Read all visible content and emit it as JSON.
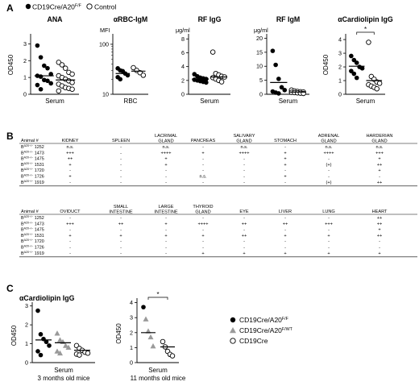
{
  "panel_a": {
    "label": "A",
    "legend": {
      "cre": "CD19Cre/A20",
      "cre_sup": "F/F",
      "control": "Control"
    },
    "charts": [
      {
        "title": "ANA",
        "ylabel": "OD450",
        "unit": "",
        "xlabel": "Serum",
        "yticks": [
          "0",
          "1",
          "2",
          "3"
        ],
        "ymax": 3.5,
        "scale": "linear"
      },
      {
        "title": "αRBC-IgM",
        "ylabel": "",
        "unit": "MFI",
        "xlabel": "RBC",
        "yticks": [
          "10",
          "100"
        ],
        "scale": "log",
        "logmin": 10,
        "logmax": 150
      },
      {
        "title": "RF IgG",
        "ylabel": "",
        "unit": "μg/ml",
        "xlabel": "Serum",
        "yticks": [
          "0",
          "2",
          "4",
          "6",
          "8"
        ],
        "ymax": 8.5,
        "scale": "linear"
      },
      {
        "title": "RF IgM",
        "ylabel": "",
        "unit": "μg/ml",
        "xlabel": "Serum",
        "yticks": [
          "0",
          "5",
          "10",
          "15",
          "20"
        ],
        "ymax": 21,
        "scale": "linear"
      },
      {
        "title": "αCardiolipin IgG",
        "ylabel": "OD450",
        "unit": "",
        "xlabel": "Serum",
        "yticks": [
          "0",
          "1",
          "2",
          "3",
          "4"
        ],
        "ymax": 4.3,
        "scale": "linear",
        "significance": "*"
      }
    ]
  },
  "panel_b": {
    "label": "B",
    "row_prefix": "B",
    "row_sup": "A20−/−",
    "animal_header": "Animal #",
    "animals": [
      "1252",
      "1473",
      "1475",
      "1531",
      "1720",
      "1726",
      "1919"
    ],
    "table1": {
      "columns": [
        [
          "KIDNEY"
        ],
        [
          "SPLEEN"
        ],
        [
          "LACRIMAL",
          "GLAND"
        ],
        [
          "PANCREAS"
        ],
        [
          "SALIVARY",
          "GLAND"
        ],
        [
          "STOMACH"
        ],
        [
          "ADRENAL",
          "GLAND"
        ],
        [
          "HARDERIAN",
          "GLAND"
        ]
      ],
      "rows": [
        [
          "n.s.",
          "-",
          "n.s.",
          "-",
          "n.s.",
          "-",
          "n.s.",
          "n.s."
        ],
        [
          "+++",
          "-",
          "++++",
          "+",
          "++++",
          "+",
          "++++",
          "+++"
        ],
        [
          "++",
          "-",
          "+",
          "-",
          "-",
          "+",
          "-",
          "+"
        ],
        [
          "+",
          "-",
          "+",
          "-",
          "-",
          "+",
          "(+)",
          "++"
        ],
        [
          "-",
          "-",
          "-",
          "-",
          "-",
          "-",
          "-",
          "+"
        ],
        [
          "+",
          "-",
          "-",
          "n.s.",
          "-",
          "+",
          "-",
          "-"
        ],
        [
          "-",
          "-",
          "-",
          "-",
          "-",
          "-",
          "(+)",
          "++"
        ]
      ]
    },
    "table2": {
      "columns": [
        [
          "OVIDUCT"
        ],
        [
          "SMALL",
          "INTESTINE"
        ],
        [
          "LARGE",
          "INTESTINE"
        ],
        [
          "THYROID",
          "GLAND"
        ],
        [
          "EYE"
        ],
        [
          "LIVER"
        ],
        [
          "LUNG"
        ],
        [
          "HEART"
        ]
      ],
      "rows": [
        [
          "-",
          "-",
          "-",
          "-",
          "-",
          "-",
          "-",
          "++"
        ],
        [
          "+++",
          "++",
          "+",
          "++++",
          "++",
          "++",
          "+++",
          "++"
        ],
        [
          "-",
          "-",
          "-",
          "-",
          "-",
          "-",
          "-",
          "+"
        ],
        [
          "+",
          "+",
          "+",
          "+",
          "++",
          "+",
          "+",
          "++"
        ],
        [
          "-",
          "-",
          "-",
          "-",
          "-",
          "-",
          "-",
          "-"
        ],
        [
          "-",
          "-",
          "-",
          "-",
          "-",
          "-",
          "-",
          "-"
        ],
        [
          "-",
          "-",
          "-",
          "+",
          "+",
          "+",
          "+",
          "+"
        ]
      ]
    }
  },
  "panel_c": {
    "label": "C",
    "chart1": {
      "title": "αCardiolipin IgG",
      "ylabel": "OD450",
      "xlabel": "Serum",
      "sublabel": "3 months old mice",
      "yticks": [
        "0",
        "1",
        "2",
        "3"
      ],
      "ymax": 3.2
    },
    "chart2": {
      "title": "",
      "ylabel": "OD450",
      "xlabel": "Serum",
      "sublabel": "11 months old mice",
      "yticks": [
        "0",
        "1",
        "2",
        "3",
        "4"
      ],
      "ymax": 4.3,
      "significance": "*"
    },
    "legend": [
      {
        "label": "CD19Cre/A20",
        "sup": "F/F",
        "marker": "filled-circle"
      },
      {
        "label": "CD19Cre/A20",
        "sup": "F/WT",
        "marker": "gray-triangle"
      },
      {
        "label": "CD19Cre",
        "sup": "",
        "marker": "open-circle"
      }
    ]
  },
  "chart_data": [
    {
      "type": "scatter",
      "panel": "A",
      "title": "ANA",
      "ylabel": "OD450",
      "xlabel": "Serum",
      "ylim": [
        0,
        3.5
      ],
      "series": [
        {
          "name": "CD19Cre/A20F/F",
          "values": [
            2.9,
            2.2,
            1.7,
            1.55,
            1.2,
            1.1,
            1.05,
            0.85,
            0.8,
            0.65,
            0.55,
            0.3
          ],
          "mean": 1.1
        },
        {
          "name": "Control",
          "values": [
            1.9,
            1.75,
            1.55,
            1.3,
            1.2,
            1.1,
            1.0,
            0.9,
            0.8,
            0.7,
            0.6,
            0.5,
            0.4,
            0.35,
            0.3,
            0.2
          ],
          "mean": 0.85
        }
      ]
    },
    {
      "type": "scatter",
      "panel": "A",
      "title": "αRBC-IgM",
      "ylabel": "MFI",
      "xlabel": "RBC",
      "ylim": [
        10,
        150
      ],
      "series": [
        {
          "name": "CD19Cre/A20F/F",
          "values": [
            33,
            30,
            29,
            26,
            24,
            22,
            20
          ],
          "mean": 26
        },
        {
          "name": "Control",
          "values": [
            34,
            30,
            27,
            24
          ],
          "mean": 29
        }
      ]
    },
    {
      "type": "scatter",
      "panel": "A",
      "title": "RF IgG",
      "ylabel": "μg/ml",
      "xlabel": "Serum",
      "ylim": [
        0,
        8.5
      ],
      "series": [
        {
          "name": "CD19Cre/A20F/F",
          "values": [
            2.9,
            2.6,
            2.4,
            2.3,
            2.2,
            2.1,
            2.0,
            1.9,
            1.8,
            1.7
          ],
          "mean": 2.2
        },
        {
          "name": "Control",
          "values": [
            6.1,
            3.0,
            2.8,
            2.6,
            2.5,
            2.4,
            2.2,
            2.0,
            1.8
          ],
          "mean": 2.5
        }
      ]
    },
    {
      "type": "scatter",
      "panel": "A",
      "title": "RF IgM",
      "ylabel": "μg/ml",
      "xlabel": "Serum",
      "ylim": [
        0,
        21
      ],
      "series": [
        {
          "name": "CD19Cre/A20F/F",
          "values": [
            15.5,
            10.5,
            5.5,
            2.5,
            1.5,
            1.0,
            0.6,
            0.3
          ],
          "mean": 4.2
        },
        {
          "name": "Control",
          "values": [
            1.5,
            1.2,
            1.0,
            0.9,
            0.8,
            0.7,
            0.6,
            0.5,
            0.4,
            0.3
          ],
          "mean": 0.8
        }
      ]
    },
    {
      "type": "scatter",
      "panel": "A",
      "title": "αCardiolipin IgG",
      "ylabel": "OD450",
      "xlabel": "Serum",
      "ylim": [
        0,
        4.3
      ],
      "series": [
        {
          "name": "CD19Cre/A20F/F",
          "values": [
            2.8,
            2.5,
            2.3,
            2.0,
            1.9,
            1.7,
            1.5,
            1.2
          ],
          "mean": 2.05
        },
        {
          "name": "Control",
          "values": [
            3.8,
            1.3,
            1.1,
            0.9,
            0.8,
            0.7,
            0.6,
            0.5,
            0.4
          ],
          "mean": 1.0
        }
      ]
    },
    {
      "type": "scatter",
      "panel": "C",
      "title": "αCardiolipin IgG",
      "ylabel": "OD450",
      "xlabel": "Serum",
      "ylim": [
        0,
        3.2
      ],
      "series": [
        {
          "name": "CD19Cre/A20F/F",
          "values": [
            2.75,
            1.5,
            1.25,
            1.1,
            0.9,
            0.6,
            0.4
          ],
          "mean": 1.2
        },
        {
          "name": "CD19Cre/A20F/WT",
          "values": [
            1.55,
            1.2,
            1.1,
            0.9,
            0.8,
            0.6,
            0.5
          ],
          "mean": 1.05
        },
        {
          "name": "CD19Cre",
          "values": [
            0.9,
            0.75,
            0.65,
            0.55,
            0.5,
            0.45,
            0.4
          ],
          "mean": 0.65
        }
      ]
    },
    {
      "type": "scatter",
      "panel": "C",
      "title": "",
      "ylabel": "OD450",
      "xlabel": "Serum",
      "ylim": [
        0,
        4.3
      ],
      "series": [
        {
          "name": "CD19Cre/A20F/F",
          "values": [
            3.7,
            2.9,
            2.1,
            1.7,
            1.1
          ],
          "mean": 2.0
        },
        {
          "name": "CD19Cre",
          "values": [
            1.4,
            1.05,
            0.75,
            0.55,
            0.45
          ],
          "mean": 1.05
        }
      ]
    }
  ]
}
